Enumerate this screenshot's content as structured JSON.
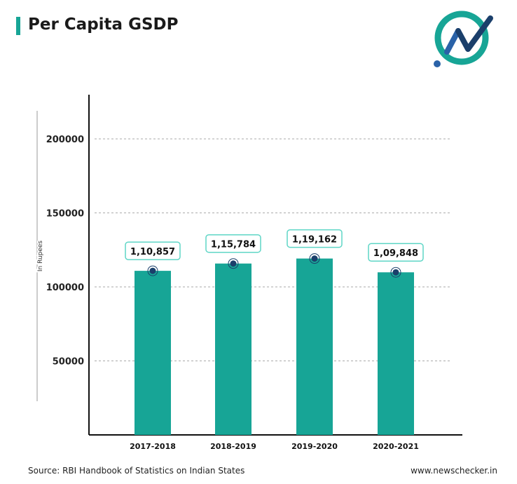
{
  "header": {
    "title": "Per Capita GSDP"
  },
  "footer": {
    "source": "Source: RBI Handbook of Statistics on Indian States",
    "website": "www.newschecker.in"
  },
  "logo": {
    "icon": "newschecker-logo-icon"
  },
  "colors": {
    "bar": "#17a596",
    "accent": "#17a596",
    "marker": "#1b3f6b",
    "label_border": "#5fd6c6"
  },
  "chart_data": {
    "type": "bar",
    "title": "Per Capita GSDP",
    "xlabel": "",
    "ylabel": "In Rupees",
    "categories": [
      "2017-2018",
      "2018-2019",
      "2019-2020",
      "2020-2021"
    ],
    "values": [
      110857,
      115784,
      119162,
      109848
    ],
    "data_labels": [
      "1,10,857",
      "1,15,784",
      "1,19,162",
      "1,09,848"
    ],
    "yticks": [
      50000,
      100000,
      150000,
      200000
    ],
    "ytick_labels": [
      "50000",
      "100000",
      "150000",
      "200000"
    ],
    "ylim": [
      0,
      230000
    ],
    "grid": true
  }
}
